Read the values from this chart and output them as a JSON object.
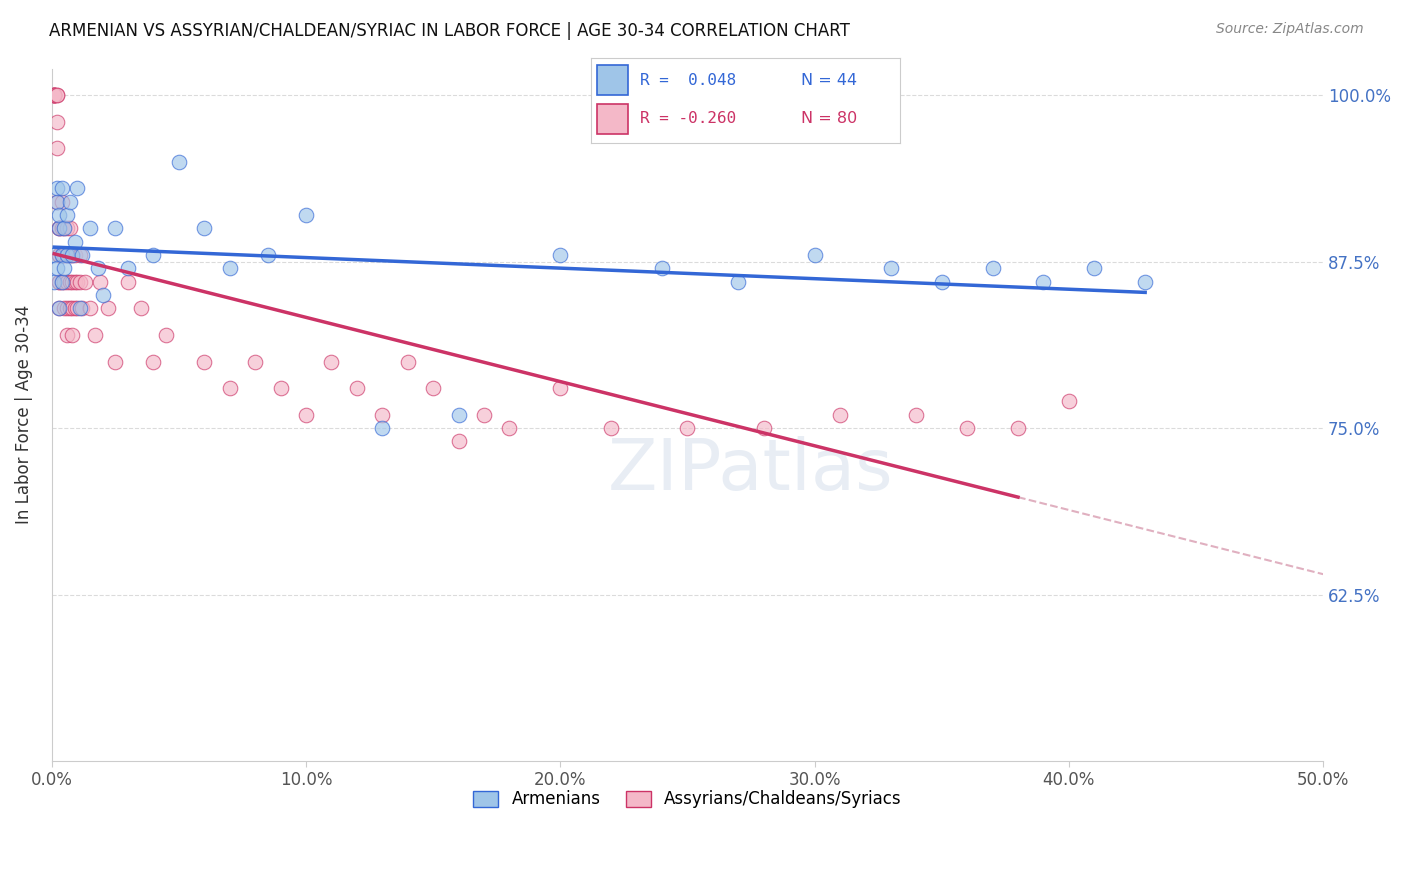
{
  "title": "ARMENIAN VS ASSYRIAN/CHALDEAN/SYRIAC IN LABOR FORCE | AGE 30-34 CORRELATION CHART",
  "source": "Source: ZipAtlas.com",
  "xlabel": "",
  "ylabel": "In Labor Force | Age 30-34",
  "xlim": [
    0.0,
    0.5
  ],
  "ylim": [
    0.5,
    1.02
  ],
  "xticks": [
    0.0,
    0.1,
    0.2,
    0.3,
    0.4,
    0.5
  ],
  "xticklabels": [
    "0.0%",
    "10.0%",
    "20.0%",
    "30.0%",
    "40.0%",
    "50.0%"
  ],
  "yticks": [
    0.625,
    0.75,
    0.875,
    1.0
  ],
  "yticklabels": [
    "62.5%",
    "75.0%",
    "87.5%",
    "100.0%"
  ],
  "right_ytick_color": "#4472c4",
  "legend_r_armenian": "R =  0.048",
  "legend_n_armenian": "N = 44",
  "legend_r_assyrian": "R = -0.260",
  "legend_n_assyrian": "N = 80",
  "armenian_color": "#9fc5e8",
  "assyrian_color": "#f4b8c8",
  "trend_armenian_color": "#3367d6",
  "trend_assyrian_color": "#cc3366",
  "trend_dashed_color": "#e0b0c0",
  "background_color": "#ffffff",
  "scatter_size": 110,
  "scatter_alpha": 0.65,
  "armenian_scatter_x": [
    0.001,
    0.001,
    0.002,
    0.002,
    0.002,
    0.003,
    0.003,
    0.003,
    0.004,
    0.004,
    0.004,
    0.005,
    0.005,
    0.006,
    0.006,
    0.007,
    0.008,
    0.009,
    0.01,
    0.011,
    0.012,
    0.015,
    0.018,
    0.02,
    0.025,
    0.03,
    0.04,
    0.05,
    0.06,
    0.07,
    0.085,
    0.1,
    0.13,
    0.16,
    0.2,
    0.24,
    0.27,
    0.3,
    0.33,
    0.35,
    0.37,
    0.39,
    0.41,
    0.43
  ],
  "armenian_scatter_y": [
    0.88,
    0.86,
    0.92,
    0.87,
    0.93,
    0.84,
    0.9,
    0.91,
    0.88,
    0.86,
    0.93,
    0.87,
    0.9,
    0.91,
    0.88,
    0.92,
    0.88,
    0.89,
    0.93,
    0.84,
    0.88,
    0.9,
    0.87,
    0.85,
    0.9,
    0.87,
    0.88,
    0.95,
    0.9,
    0.87,
    0.88,
    0.91,
    0.75,
    0.76,
    0.88,
    0.87,
    0.86,
    0.88,
    0.87,
    0.86,
    0.87,
    0.86,
    0.87,
    0.86
  ],
  "assyrian_scatter_x": [
    0.001,
    0.001,
    0.001,
    0.001,
    0.001,
    0.001,
    0.002,
    0.002,
    0.002,
    0.002,
    0.002,
    0.003,
    0.003,
    0.003,
    0.003,
    0.003,
    0.003,
    0.003,
    0.004,
    0.004,
    0.004,
    0.004,
    0.004,
    0.005,
    0.005,
    0.005,
    0.005,
    0.006,
    0.006,
    0.006,
    0.006,
    0.006,
    0.007,
    0.007,
    0.007,
    0.007,
    0.008,
    0.008,
    0.008,
    0.008,
    0.009,
    0.009,
    0.009,
    0.01,
    0.01,
    0.011,
    0.011,
    0.012,
    0.013,
    0.015,
    0.017,
    0.019,
    0.022,
    0.025,
    0.03,
    0.035,
    0.04,
    0.045,
    0.06,
    0.07,
    0.08,
    0.09,
    0.1,
    0.11,
    0.12,
    0.13,
    0.14,
    0.15,
    0.16,
    0.17,
    0.18,
    0.2,
    0.22,
    0.25,
    0.28,
    0.31,
    0.34,
    0.36,
    0.38,
    0.4
  ],
  "assyrian_scatter_y": [
    1.0,
    1.0,
    1.0,
    1.0,
    1.0,
    1.0,
    1.0,
    1.0,
    0.98,
    0.96,
    0.92,
    0.9,
    0.9,
    0.88,
    0.88,
    0.86,
    0.86,
    0.84,
    0.92,
    0.9,
    0.88,
    0.88,
    0.86,
    0.9,
    0.88,
    0.86,
    0.84,
    0.9,
    0.88,
    0.86,
    0.84,
    0.82,
    0.9,
    0.88,
    0.86,
    0.84,
    0.88,
    0.86,
    0.84,
    0.82,
    0.88,
    0.86,
    0.84,
    0.86,
    0.84,
    0.88,
    0.86,
    0.84,
    0.86,
    0.84,
    0.82,
    0.86,
    0.84,
    0.8,
    0.86,
    0.84,
    0.8,
    0.82,
    0.8,
    0.78,
    0.8,
    0.78,
    0.76,
    0.8,
    0.78,
    0.76,
    0.8,
    0.78,
    0.74,
    0.76,
    0.75,
    0.78,
    0.75,
    0.75,
    0.75,
    0.76,
    0.76,
    0.75,
    0.75,
    0.77
  ],
  "ass_trend_x_start": 0.001,
  "ass_trend_x_solid_end": 0.38,
  "ass_trend_x_dash_end": 0.5,
  "arm_trend_x_start": 0.001,
  "arm_trend_x_end": 0.43
}
